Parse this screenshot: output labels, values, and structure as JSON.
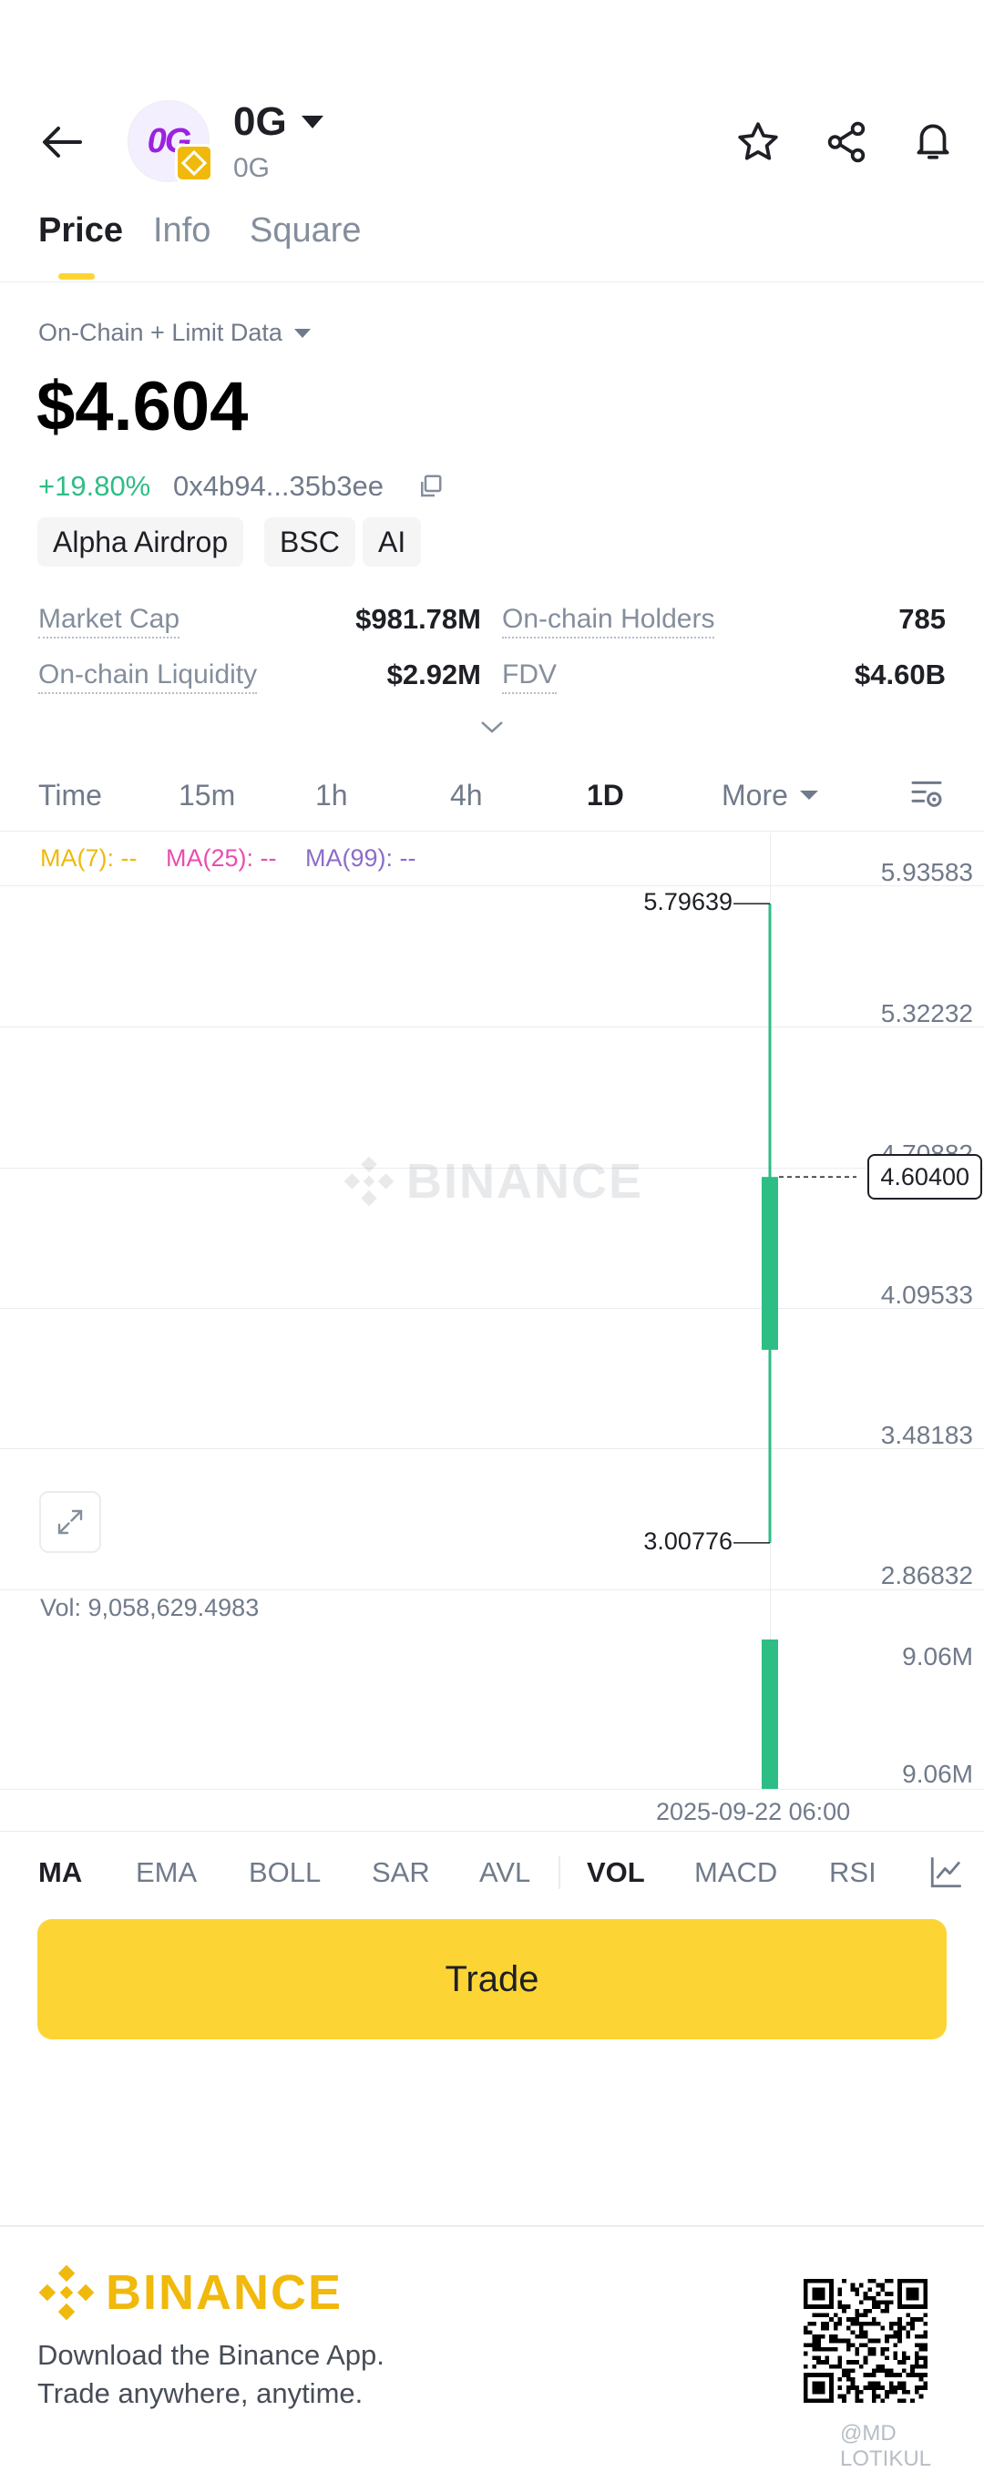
{
  "header": {
    "token_symbol": "0G",
    "token_name": "0G",
    "logo_text": "0G"
  },
  "tabs": [
    {
      "label": "Price",
      "active": true
    },
    {
      "label": "Info",
      "active": false
    },
    {
      "label": "Square",
      "active": false
    }
  ],
  "data_source": "On-Chain + Limit Data",
  "price": "$4.604",
  "change": "+19.80%",
  "contract": "0x4b94...35b3ee",
  "tags": [
    "Alpha Airdrop",
    "BSC",
    "AI"
  ],
  "stats": {
    "market_cap_label": "Market Cap",
    "market_cap": "$981.78M",
    "holders_label": "On-chain Holders",
    "holders": "785",
    "liquidity_label": "On-chain Liquidity",
    "liquidity": "$2.92M",
    "fdv_label": "FDV",
    "fdv": "$4.60B"
  },
  "timeframes": [
    "Time",
    "15m",
    "1h",
    "4h",
    "1D",
    "More"
  ],
  "active_timeframe": "1D",
  "ma_labels": {
    "ma7": "MA(7): --",
    "ma25": "MA(25): --",
    "ma99": "MA(99): --"
  },
  "watermark": "BINANCE",
  "chart_data": {
    "type": "candlestick",
    "y_axis_ticks": [
      "5.93583",
      "5.32232",
      "4.70882",
      "4.09533",
      "3.48183",
      "2.86832"
    ],
    "ylim": [
      2.86832,
      5.93583
    ],
    "candles": [
      {
        "date": "2025-09-22 06:00",
        "open": 3.85,
        "high": 5.79639,
        "low": 3.00776,
        "close": 4.604
      }
    ],
    "high_label": "5.79639",
    "low_label": "3.00776",
    "current_price_label": "4.60400",
    "volume_label": "Vol: 9,058,629.4983",
    "volume_axis": [
      "9.06M",
      "9.06M"
    ],
    "x_label": "2025-09-22 06:00",
    "up_color": "#2ebd85"
  },
  "indicators": [
    "MA",
    "EMA",
    "BOLL",
    "SAR",
    "AVL",
    "VOL",
    "MACD",
    "RSI"
  ],
  "trade_label": "Trade",
  "footer": {
    "brand": "BINANCE",
    "line1": "Download the Binance App.",
    "line2": "Trade anywhere, anytime.",
    "watermark_credit": "@MD LOTIKUL"
  },
  "colors": {
    "accent": "#fcd535",
    "brand": "#f0b90b",
    "up": "#2ebd85",
    "ma7": "#f0b90b",
    "ma25": "#e84eb0",
    "ma99": "#8c6cc9"
  }
}
